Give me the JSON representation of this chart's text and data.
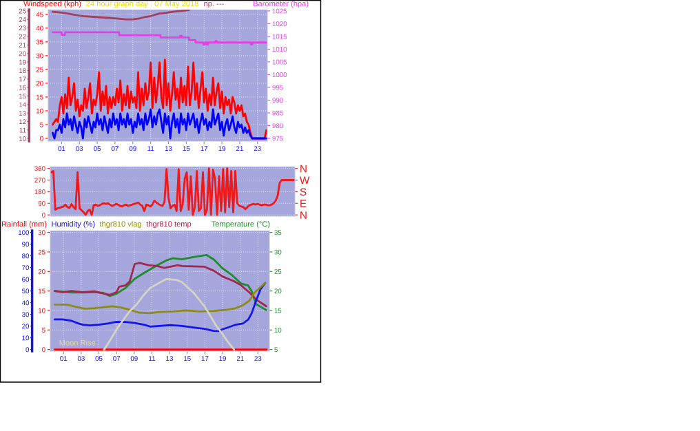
{
  "chart_data": [
    {
      "type": "line",
      "title": "24 hour graph day : 07 May 2018",
      "ylabel": "Windspeed (kph)",
      "y2label": "Barometer (hpa)",
      "y3label": "np. ---",
      "x": [
        0,
        0.2,
        0.4,
        0.6,
        0.8,
        1,
        1.2,
        1.4,
        1.6,
        1.8,
        2,
        2.2,
        2.4,
        2.6,
        2.8,
        3,
        3.2,
        3.4,
        3.6,
        3.8,
        4,
        4.2,
        4.4,
        4.6,
        4.8,
        5,
        5.2,
        5.4,
        5.6,
        5.8,
        6,
        6.2,
        6.4,
        6.6,
        6.8,
        7,
        7.2,
        7.4,
        7.6,
        7.8,
        8,
        8.2,
        8.4,
        8.6,
        8.8,
        9,
        9.2,
        9.4,
        9.6,
        9.8,
        10,
        10.2,
        10.4,
        10.6,
        10.8,
        11,
        11.2,
        11.4,
        11.6,
        11.8,
        12,
        12.2,
        12.4,
        12.6,
        12.8,
        13,
        13.2,
        13.4,
        13.6,
        13.8,
        14,
        14.2,
        14.4,
        14.6,
        14.8,
        15,
        15.2,
        15.4,
        15.6,
        15.8,
        16,
        16.2,
        16.4,
        16.6,
        16.8,
        17,
        17.2,
        17.4,
        17.6,
        17.8,
        18,
        18.2,
        18.4,
        18.6,
        18.8,
        19,
        19.2,
        19.4,
        19.6,
        19.8,
        20,
        20.2,
        20.4,
        20.6,
        20.8,
        21,
        21.2,
        21.4,
        21.6,
        21.8,
        22,
        22.2,
        22.4,
        22.6,
        22.8,
        23,
        23.2,
        23.4,
        23.6,
        23.8,
        24
      ],
      "xlim": [
        -0.5,
        24.1
      ],
      "xticks": [
        {
          "value": 1,
          "label": "01"
        },
        {
          "value": 3,
          "label": "03"
        },
        {
          "value": 5,
          "label": "05"
        },
        {
          "value": 7,
          "label": "07"
        },
        {
          "value": 9,
          "label": "09"
        },
        {
          "value": 11,
          "label": "11"
        },
        {
          "value": 13,
          "label": "13"
        },
        {
          "value": 15,
          "label": "15"
        },
        {
          "value": 17,
          "label": "17"
        },
        {
          "value": 19,
          "label": "19"
        },
        {
          "value": 21,
          "label": "21"
        },
        {
          "value": 23,
          "label": "23"
        }
      ],
      "ylim": [
        -1,
        46.7
      ],
      "yticks": [
        0,
        5,
        10,
        15,
        20,
        25,
        30,
        35,
        40,
        45
      ],
      "y2lim": [
        973.9,
        1025.5
      ],
      "y2ticks": [
        975,
        980,
        985,
        990,
        995,
        1000,
        1005,
        1010,
        1015,
        1020,
        1025
      ],
      "y3lim": [
        9.7,
        25.15
      ],
      "y3ticks": [
        10,
        11,
        12,
        13,
        14,
        15,
        16,
        17,
        18,
        19,
        20,
        21,
        22,
        23,
        24,
        25
      ],
      "grid": true,
      "series": [
        {
          "color": "#ff0000",
          "values": [
            5,
            6,
            7,
            6,
            12,
            15,
            9,
            16,
            11,
            22,
            12,
            15,
            20,
            10,
            14,
            8,
            12,
            10,
            18,
            11,
            15,
            20,
            9,
            14,
            12,
            16,
            24,
            10,
            17,
            12,
            19,
            9,
            15,
            11,
            15,
            12,
            18,
            13,
            21,
            10,
            16,
            12,
            19,
            11,
            17,
            13,
            15,
            11,
            24,
            10,
            18,
            12,
            20,
            14,
            17,
            27.5,
            11,
            22,
            13,
            19,
            27.5,
            15,
            11,
            28.5,
            12,
            20,
            10,
            16,
            24,
            14,
            18,
            11,
            22,
            13,
            19,
            12,
            26,
            12,
            17,
            27.5,
            14,
            20,
            11,
            18,
            24,
            13,
            18,
            10,
            16,
            12,
            22,
            12,
            17,
            20,
            11,
            17,
            9,
            15,
            12,
            14,
            9,
            15,
            13,
            9,
            12,
            10,
            12,
            8,
            9,
            6,
            5,
            2,
            0,
            0,
            0,
            0,
            0,
            0,
            0,
            0,
            3
          ]
        },
        {
          "color": "#0000ff",
          "values": [
            2,
            0,
            3,
            3,
            5,
            2,
            7,
            4,
            9,
            5,
            7,
            3,
            8,
            5,
            2,
            6,
            4,
            0,
            7,
            4,
            8,
            5,
            2,
            6,
            4,
            9,
            5,
            7,
            3,
            8,
            5,
            2,
            7,
            4,
            9,
            5,
            7,
            3,
            9,
            5,
            7,
            4,
            9,
            5,
            7,
            2,
            6,
            4,
            9,
            5,
            7,
            3,
            9,
            5,
            7,
            10.5,
            4,
            8,
            5,
            9,
            10.5,
            6,
            2,
            9,
            5,
            8,
            0,
            6,
            9,
            4,
            7,
            2,
            9,
            5,
            7,
            3,
            9,
            5,
            7,
            9,
            4,
            7,
            2,
            6,
            9,
            5,
            7,
            3,
            6,
            4,
            10.5,
            5,
            7,
            9,
            3,
            6,
            1,
            5,
            7,
            3,
            5,
            8,
            4,
            2,
            6,
            4,
            5,
            2,
            4,
            2,
            3,
            1,
            0,
            0,
            0,
            0,
            0,
            0,
            0,
            0,
            0
          ]
        },
        {
          "axis": "y2",
          "color": "#e83ce8",
          "x": [
            0,
            1.0,
            1.02,
            1.38,
            1.4,
            7.45,
            7.47,
            12.1,
            12.12,
            14.3,
            14.32,
            14.48,
            14.5,
            15.3,
            15.32,
            16.03,
            16.05,
            16.9,
            16.92,
            17.1,
            17.12,
            17.3,
            17.32,
            17.45,
            17.47,
            18.25,
            18.3,
            18.4,
            18.45,
            22.25,
            22.27,
            22.4,
            22.42,
            24.0
          ],
          "values": [
            1016.6,
            1016.6,
            1015.6,
            1015.6,
            1016.6,
            1016.6,
            1015.5,
            1015.5,
            1014.6,
            1014.6,
            1015.2,
            1015.2,
            1014.6,
            1014.6,
            1013.5,
            1013.5,
            1012.6,
            1012.6,
            1011.8,
            1011.8,
            1012.6,
            1012.6,
            1011.8,
            1011.8,
            1012.6,
            1012.6,
            1013.2,
            1013.2,
            1012.6,
            1012.6,
            1011.8,
            1011.8,
            1012.6,
            1012.6
          ]
        },
        {
          "axis": "y3",
          "color": "#a0405e",
          "x": [
            0,
            1.1,
            2.2,
            3.4,
            4.65,
            6.0,
            7.2,
            8.2,
            9.0,
            9.7,
            10.4,
            11.0,
            12.0,
            12.2,
            13.5,
            14.4,
            15.3
          ],
          "values": [
            24.9,
            24.8,
            24.6,
            24.4,
            24.3,
            24.2,
            24.1,
            24.0,
            24.0,
            24.1,
            24.3,
            24.4,
            24.7,
            24.7,
            24.9,
            25.0,
            25.1
          ]
        }
      ]
    },
    {
      "type": "line",
      "categories": [
        null,
        null,
        null,
        null,
        null,
        null,
        null,
        null,
        null,
        null,
        null,
        null,
        null,
        null,
        null,
        null,
        null,
        null,
        null,
        null,
        null,
        null,
        null,
        null,
        null,
        null,
        null,
        null,
        null,
        null,
        null,
        null,
        null,
        null,
        null,
        null,
        null,
        null,
        null,
        null,
        null,
        null,
        null,
        null,
        null,
        null,
        null,
        null,
        null,
        null,
        null,
        null,
        null,
        null,
        null,
        null,
        null,
        null,
        null,
        null,
        null,
        null,
        null,
        null,
        null,
        null,
        null,
        null,
        null,
        null,
        null,
        null,
        null,
        null,
        null,
        null,
        null,
        null,
        null,
        null,
        null,
        null,
        null,
        null,
        null,
        null,
        null,
        null,
        null,
        null,
        null,
        null,
        null,
        null,
        null,
        null,
        null,
        null,
        null,
        null,
        null,
        null,
        null,
        null,
        null,
        null,
        null,
        null,
        null,
        null,
        null,
        null,
        null,
        null,
        null,
        null,
        null,
        null,
        null,
        null,
        null
      ],
      "ylim": [
        -10,
        374
      ],
      "yticks": [
        0,
        90,
        180,
        270,
        360
      ],
      "y2_categories": [
        "N",
        "W",
        "S",
        "E",
        "N"
      ],
      "grid": true,
      "tick_labels": "y",
      "series": [
        {
          "color": "#f01818",
          "values": [
            330,
            340,
            40,
            50,
            55,
            60,
            65,
            80,
            60,
            55,
            85,
            60,
            45,
            330,
            50,
            35,
            20,
            0,
            30,
            40,
            0,
            75,
            80,
            70,
            75,
            85,
            90,
            85,
            90,
            80,
            70,
            75,
            85,
            80,
            70,
            65,
            75,
            80,
            70,
            75,
            80,
            85,
            90,
            95,
            80,
            70,
            30,
            80,
            75,
            65,
            80,
            110,
            95,
            85,
            75,
            70,
            100,
            355,
            130,
            50,
            70,
            80,
            30,
            355,
            30,
            80,
            280,
            330,
            40,
            300,
            0,
            60,
            340,
            30,
            50,
            330,
            0,
            40,
            360,
            0,
            350,
            280,
            0,
            300,
            30,
            355,
            20,
            360,
            60,
            340,
            20,
            340,
            90,
            70,
            65,
            60,
            45,
            60,
            75,
            80,
            85,
            80,
            85,
            80,
            75,
            80,
            80,
            75,
            75,
            80,
            90,
            110,
            150,
            250,
            270,
            270,
            270,
            270,
            270,
            270,
            270
          ]
        }
      ]
    },
    {
      "type": "line",
      "ylabel": "Rainfall (mm)",
      "y3label": "Humidity (%)",
      "y2label": "Temperature (°C)",
      "xlim": [
        -0.5,
        24.3
      ],
      "xticks": [
        {
          "value": 1,
          "label": "01"
        },
        {
          "value": 3,
          "label": "03"
        },
        {
          "value": 5,
          "label": "05"
        },
        {
          "value": 7,
          "label": "07"
        },
        {
          "value": 9,
          "label": "09"
        },
        {
          "value": 11,
          "label": "11"
        },
        {
          "value": 13,
          "label": "13"
        },
        {
          "value": 15,
          "label": "15"
        },
        {
          "value": 17,
          "label": "17"
        },
        {
          "value": 19,
          "label": "19"
        },
        {
          "value": 21,
          "label": "21"
        },
        {
          "value": 23,
          "label": "23"
        }
      ],
      "ylim": [
        -0.42,
        30.46
      ],
      "yticks": [
        0,
        5,
        10,
        15,
        20,
        25,
        30
      ],
      "y3lim": [
        -1.4,
        101.5
      ],
      "y3ticks": [
        0,
        10,
        20,
        30,
        40,
        50,
        60,
        70,
        80,
        90,
        100
      ],
      "y2lim": [
        4.58,
        35.46
      ],
      "y2ticks": [
        5,
        10,
        15,
        20,
        25,
        30,
        35
      ],
      "grid": true,
      "annotations": [
        "Moon Rise"
      ],
      "series": [
        {
          "color": "#ff0000",
          "x": [
            0,
            24
          ],
          "values": [
            0,
            0
          ]
        },
        {
          "axis": "y3",
          "color": "#1414f0",
          "x": [
            0,
            0.9,
            1.9,
            2.7,
            3.2,
            3.95,
            4.97,
            6.0,
            7.0,
            8.03,
            9.05,
            10.1,
            10.8,
            11.85,
            13.1,
            14.4,
            15.7,
            16.95,
            18.0,
            18.5,
            19.0,
            19.75,
            20.5,
            21.3,
            21.9,
            22.3,
            22.8,
            23.3,
            23.83
          ],
          "values": [
            25.7,
            25.7,
            24.5,
            22.2,
            21.2,
            20.6,
            21.2,
            22.2,
            23.7,
            23.5,
            22.7,
            21.2,
            19.6,
            20.2,
            20.8,
            20.2,
            18.8,
            17.6,
            15.9,
            15.7,
            17.3,
            19.2,
            21.2,
            22.2,
            25.5,
            31,
            41.8,
            51.6,
            56.9
          ]
        },
        {
          "axis": "y3",
          "name": "thgr810 vlag",
          "color": "#8c8c14",
          "x": [
            0,
            1.4,
            1.9,
            2.4,
            3.45,
            4.5,
            5.7,
            6.5,
            7.5,
            8.5,
            9.6,
            10.8,
            11.85,
            13.4,
            14.9,
            16.4,
            18.0,
            19.5,
            20.5,
            21.3,
            22.05,
            22.6,
            23.2,
            23.83
          ],
          "values": [
            38.4,
            38.4,
            37.3,
            36.5,
            34.9,
            35.3,
            36.3,
            36.9,
            35.9,
            33.9,
            31.4,
            31.0,
            32.0,
            32.5,
            33.3,
            32.5,
            32.9,
            33.9,
            35.3,
            37.8,
            41.8,
            48.6,
            52.5,
            56.9
          ]
        },
        {
          "axis": "y3",
          "color": "#d4d4c4",
          "x": [
            5.6,
            6.25,
            7.0,
            8.5,
            9.3,
            10.1,
            10.8,
            11.6,
            12.6,
            12.9,
            13.8,
            14.4,
            15.7,
            16.95,
            17.6,
            18.2,
            18.9,
            19.5,
            20.3
          ],
          "values": [
            0,
            7.5,
            17.3,
            32.9,
            38.8,
            46.7,
            52.5,
            55.9,
            60,
            60,
            59.4,
            57.5,
            48.6,
            36.9,
            29,
            21.2,
            14.3,
            7.5,
            0
          ]
        },
        {
          "axis": "y2",
          "color": "#1e8c28",
          "x": [
            0,
            1.9,
            3.2,
            4.5,
            5.5,
            6.25,
            7.0,
            8.03,
            9.05,
            10.1,
            11.6,
            12.6,
            13.4,
            14.4,
            15.7,
            17.2,
            18.0,
            19.0,
            20.1,
            21.1,
            21.9,
            22.3,
            22.8,
            23.95
          ],
          "values": [
            20.0,
            19.6,
            19.6,
            19.7,
            19.5,
            18.7,
            19.3,
            20.8,
            23.1,
            24.6,
            26.6,
            27.8,
            28.4,
            28.1,
            28.7,
            29.2,
            28.1,
            25.8,
            24.0,
            21.9,
            21.4,
            19.9,
            16.6,
            15.1
          ]
        },
        {
          "axis": "y2",
          "name": "thgr810 temp",
          "color": "#a02850",
          "x": [
            0,
            0.9,
            1.9,
            3.2,
            4.5,
            5.2,
            6.25,
            7.0,
            7.3,
            8.0,
            8.5,
            9.05,
            9.6,
            10.6,
            11.6,
            12.4,
            13.9,
            14.4,
            16.95,
            18.0,
            19.0,
            20.3,
            21.0,
            22.05,
            22.8,
            23.95
          ],
          "values": [
            20.0,
            19.7,
            20.0,
            19.7,
            19.9,
            19.5,
            19.0,
            19.7,
            21.1,
            21.4,
            22.5,
            26.9,
            27.2,
            26.6,
            26.4,
            25.9,
            26.6,
            26.4,
            26.2,
            25.2,
            23.7,
            22.5,
            21.6,
            19.6,
            17.8,
            16.1
          ]
        }
      ]
    }
  ]
}
